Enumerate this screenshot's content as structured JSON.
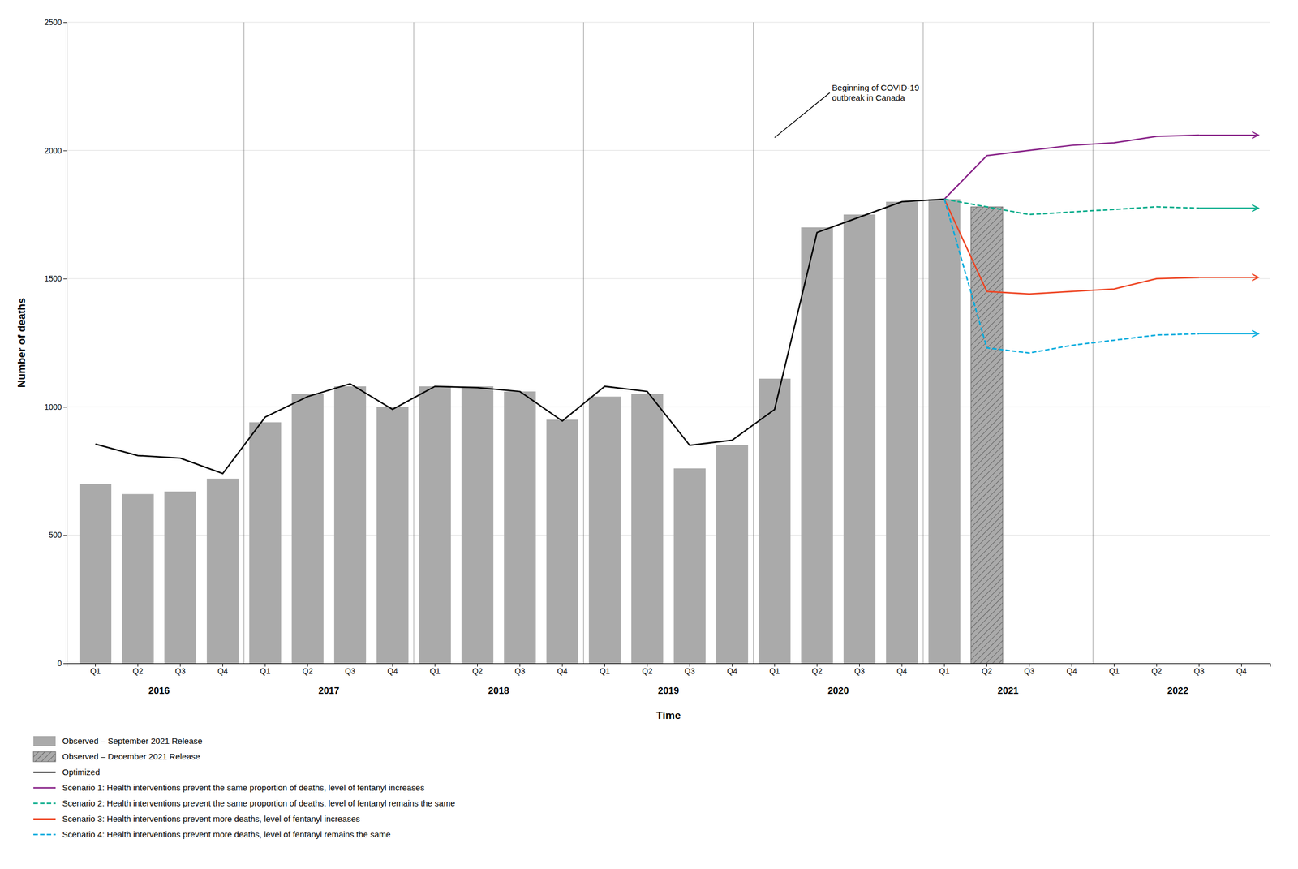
{
  "chart_data": {
    "type": "bar",
    "x_label": "Time",
    "y_label": "Number of deaths",
    "categories": [
      "Q1",
      "Q2",
      "Q3",
      "Q4",
      "Q1",
      "Q2",
      "Q3",
      "Q4",
      "Q1",
      "Q2",
      "Q3",
      "Q4",
      "Q1",
      "Q2",
      "Q3",
      "Q4",
      "Q1",
      "Q2",
      "Q3",
      "Q4",
      "Q1",
      "Q2",
      "Q3",
      "Q4",
      "Q1",
      "Q2",
      "Q3",
      "Q4"
    ],
    "category_groups": [
      "2016",
      "2017",
      "2018",
      "2019",
      "2020",
      "2021",
      "2022"
    ],
    "series": [
      {
        "name": "Observed – September 2021 Release",
        "type": "bar",
        "color": "#aaaaaa",
        "values": [
          700,
          660,
          670,
          720,
          940,
          1050,
          1080,
          1000,
          1080,
          1080,
          1060,
          950,
          1040,
          1050,
          760,
          850,
          1110,
          1700,
          1750,
          1800,
          1810,
          null,
          null,
          null,
          null,
          null,
          null,
          null
        ]
      },
      {
        "name": "Observed – December 2021 Release",
        "type": "bar",
        "color": "#aaaaaa",
        "values": [
          null,
          null,
          null,
          null,
          null,
          null,
          null,
          null,
          null,
          null,
          null,
          null,
          null,
          null,
          null,
          null,
          null,
          null,
          null,
          null,
          null,
          1780,
          null,
          null,
          null,
          null,
          null,
          null
        ]
      },
      {
        "name": "Optimized",
        "type": "line",
        "color": "#000000",
        "line_style": "solid",
        "values": [
          855,
          810,
          800,
          740,
          960,
          1040,
          1090,
          990,
          1080,
          1075,
          1060,
          945,
          1080,
          1060,
          850,
          870,
          990,
          1680,
          1740,
          1800,
          1810,
          null,
          null,
          null,
          null,
          null,
          null,
          null
        ]
      },
      {
        "name": "Scenario 1: Health interventions prevent the same proportion of deaths, level of fentanyl increases",
        "type": "line",
        "color": "#882288",
        "line_style": "solid",
        "values": [
          null,
          null,
          null,
          null,
          null,
          null,
          null,
          null,
          null,
          null,
          null,
          null,
          null,
          null,
          null,
          null,
          null,
          null,
          null,
          null,
          1810,
          1980,
          2000,
          2020,
          2030,
          2055,
          2060,
          null
        ]
      },
      {
        "name": "Scenario 2: Health interventions prevent the same proportion of deaths, level of fentanyl remains the same",
        "type": "line",
        "color": "#00aa88",
        "line_style": "dashed",
        "values": [
          null,
          null,
          null,
          null,
          null,
          null,
          null,
          null,
          null,
          null,
          null,
          null,
          null,
          null,
          null,
          null,
          null,
          null,
          null,
          null,
          1810,
          1780,
          1750,
          1760,
          1770,
          1780,
          1775,
          null
        ]
      },
      {
        "name": "Scenario 3: Health interventions prevent more deaths, level of fentanyl increases",
        "type": "line",
        "color": "#ee4422",
        "line_style": "solid",
        "values": [
          null,
          null,
          null,
          null,
          null,
          null,
          null,
          null,
          null,
          null,
          null,
          null,
          null,
          null,
          null,
          null,
          null,
          null,
          null,
          null,
          1810,
          1450,
          1440,
          1450,
          1460,
          1500,
          1505,
          null
        ]
      },
      {
        "name": "Scenario 4: Health interventions prevent more deaths, level of fentanyl remains the same",
        "type": "line",
        "color": "#00aadd",
        "line_style": "dashed",
        "values": [
          null,
          null,
          null,
          null,
          null,
          null,
          null,
          null,
          null,
          null,
          null,
          null,
          null,
          null,
          null,
          null,
          null,
          null,
          null,
          null,
          1810,
          1230,
          1210,
          1240,
          1260,
          1280,
          1285,
          null
        ]
      }
    ],
    "annotations": [
      {
        "text": "Beginning of COVID-19\noutbreak in Canada",
        "x": 16,
        "y": 2050
      }
    ],
    "ylim": [
      0,
      2500
    ],
    "yticks": [
      0,
      500,
      1000,
      1500,
      2000,
      2500
    ],
    "grid": true,
    "legend": "bottom"
  }
}
